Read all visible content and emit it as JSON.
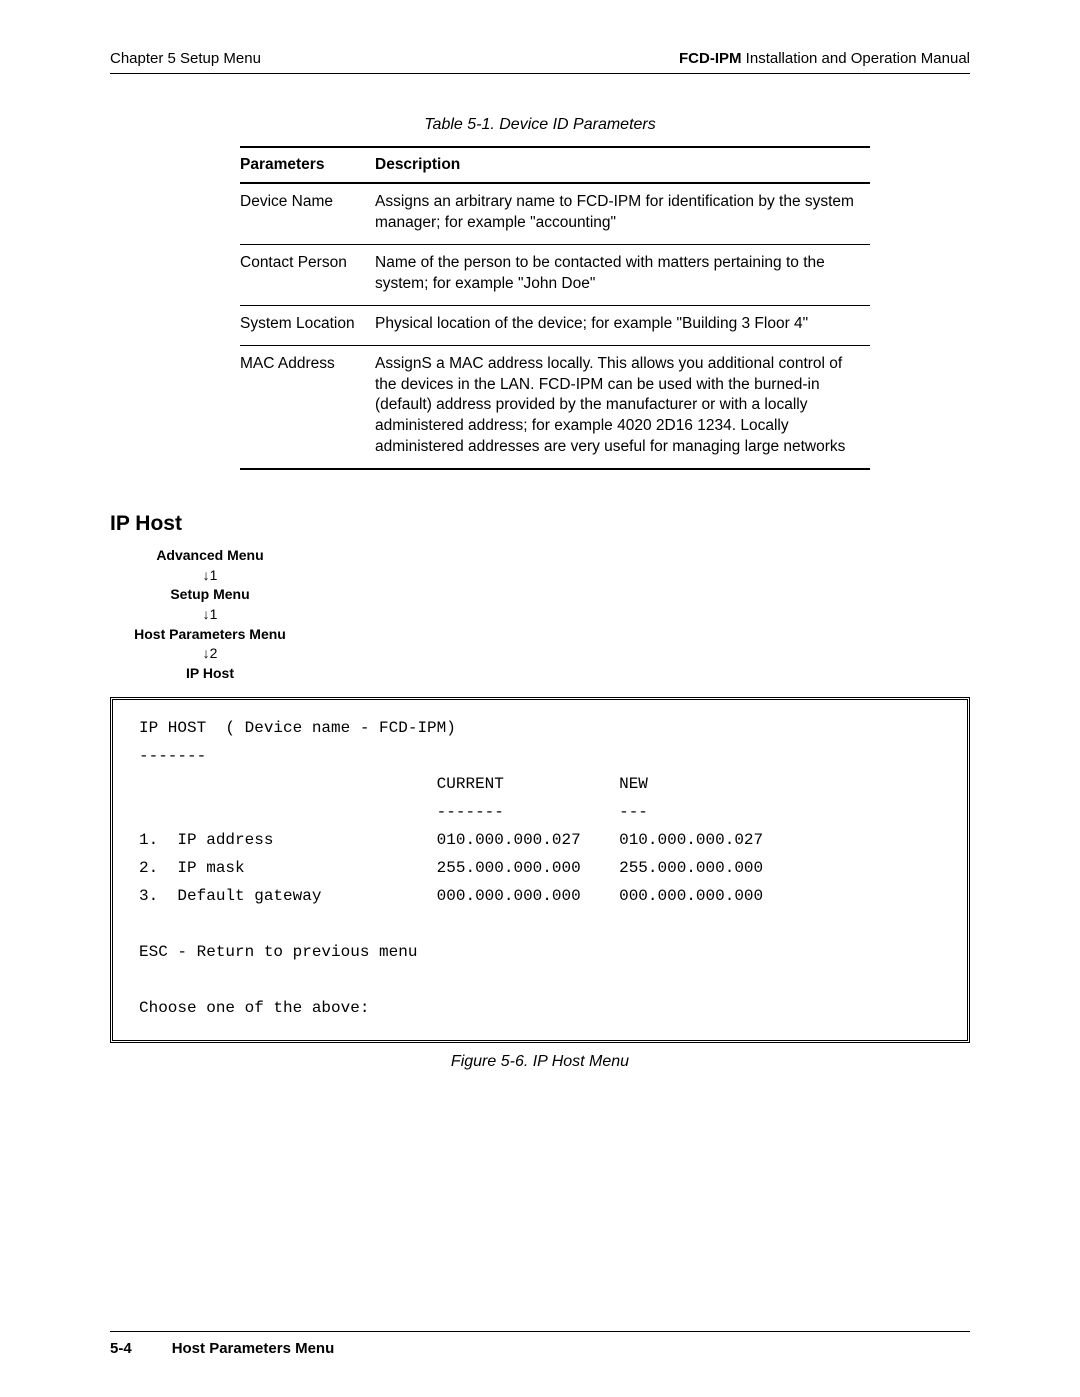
{
  "header": {
    "left": "Chapter 5  Setup Menu",
    "right_bold": "FCD-IPM",
    "right_rest": " Installation and Operation Manual"
  },
  "table": {
    "caption": "Table 5-1.  Device ID Parameters",
    "columns": [
      "Parameters",
      "Description"
    ],
    "rows": [
      [
        "Device Name",
        "Assigns an arbitrary name to FCD-IPM for identification by the system manager; for example \"accounting\""
      ],
      [
        "Contact Person",
        "Name of the person to be contacted with matters pertaining to the system; for example \"John Doe\""
      ],
      [
        "System Location",
        "Physical location of the device; for example \"Building 3 Floor 4\""
      ],
      [
        "MAC Address",
        "AssignS a MAC address locally. This allows you additional control of the devices in the LAN. FCD-IPM can be used with the burned-in (default) address provided by the manufacturer or with a locally administered address; for example 4020 2D16 1234. Locally administered addresses are very useful for managing large networks"
      ]
    ]
  },
  "section_title": "IP Host",
  "breadcrumb": {
    "step1": "Advanced Menu",
    "arrow1": "↓1",
    "step2": "Setup Menu",
    "arrow2": "↓1",
    "step3": "Host Parameters Menu",
    "arrow3": "↓2",
    "step4": "IP Host"
  },
  "terminal": {
    "title": "IP HOST  ( Device name - FCD-IPM)",
    "dash": "-------",
    "col_current": "CURRENT",
    "col_new": "NEW",
    "col_current_dash": "-------",
    "col_new_dash": "---",
    "rows": [
      {
        "num": "1.",
        "label": "IP address",
        "current": "010.000.000.027",
        "new": "010.000.000.027"
      },
      {
        "num": "2.",
        "label": "IP mask",
        "current": "255.000.000.000",
        "new": "255.000.000.000"
      },
      {
        "num": "3.",
        "label": "Default gateway",
        "current": "000.000.000.000",
        "new": "000.000.000.000"
      }
    ],
    "esc": "ESC - Return to previous menu",
    "prompt": "Choose one of the above:"
  },
  "figure_caption": "Figure 5-6.  IP Host Menu",
  "footer": {
    "page": "5-4",
    "section": "Host Parameters Menu"
  }
}
